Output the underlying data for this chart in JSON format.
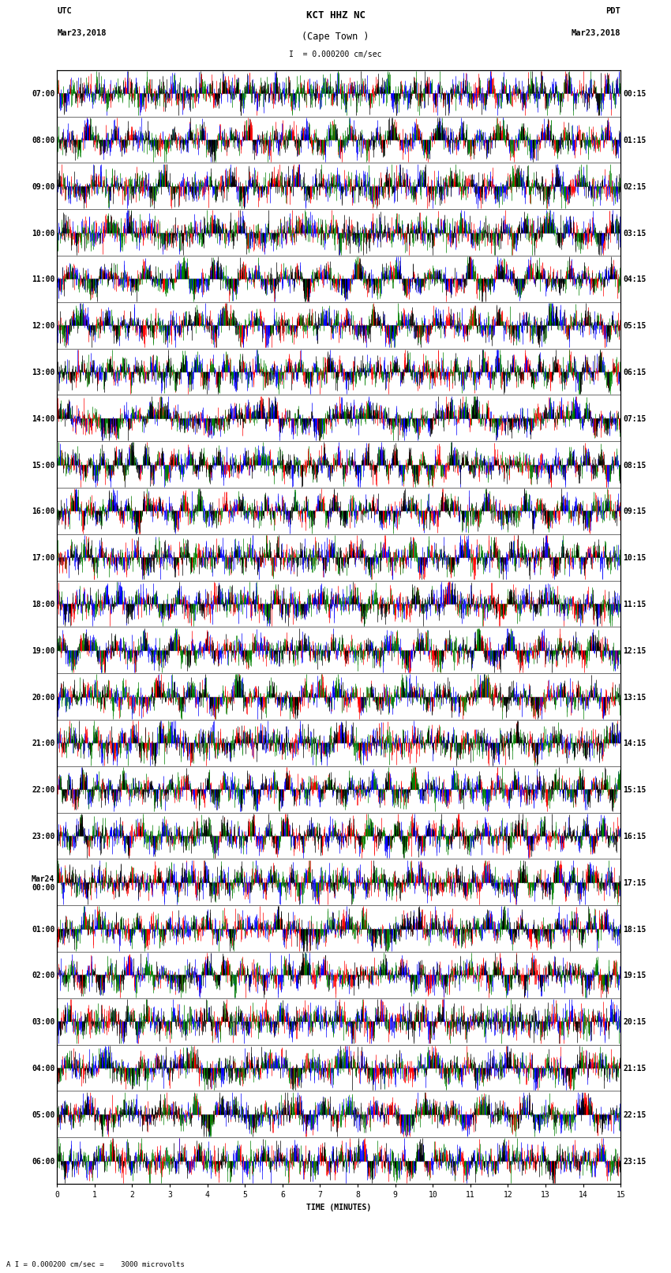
{
  "title_line1": "KCT HHZ NC",
  "title_line2": "(Cape Town )",
  "scale_bar_text": "= 0.000200 cm/sec",
  "bottom_label": "= 0.000200 cm/sec =    3000 microvolts",
  "xlabel": "TIME (MINUTES)",
  "left_header_line1": "UTC",
  "left_header_line2": "Mar23,2018",
  "right_header_line1": "PDT",
  "right_header_line2": "Mar23,2018",
  "utc_labels": [
    "07:00",
    "08:00",
    "09:00",
    "10:00",
    "11:00",
    "12:00",
    "13:00",
    "14:00",
    "15:00",
    "16:00",
    "17:00",
    "18:00",
    "19:00",
    "20:00",
    "21:00",
    "22:00",
    "23:00",
    "Mar24\n00:00",
    "01:00",
    "02:00",
    "03:00",
    "04:00",
    "05:00",
    "06:00"
  ],
  "pdt_labels": [
    "00:15",
    "01:15",
    "02:15",
    "03:15",
    "04:15",
    "05:15",
    "06:15",
    "07:15",
    "08:15",
    "09:15",
    "10:15",
    "11:15",
    "12:15",
    "13:15",
    "14:15",
    "15:15",
    "16:15",
    "17:15",
    "18:15",
    "19:15",
    "20:15",
    "21:15",
    "22:15",
    "23:15"
  ],
  "n_rows": 24,
  "x_ticks": [
    0,
    1,
    2,
    3,
    4,
    5,
    6,
    7,
    8,
    9,
    10,
    11,
    12,
    13,
    14,
    15
  ],
  "bg_color": "white",
  "seismo_colors": [
    "red",
    "blue",
    "green",
    "black"
  ],
  "seed": 42,
  "fig_width": 8.5,
  "fig_height": 16.13,
  "dpi": 100,
  "label_fontsize": 7,
  "title_fontsize": 9,
  "header_fontsize": 7.5,
  "samples_per_row": 3000
}
